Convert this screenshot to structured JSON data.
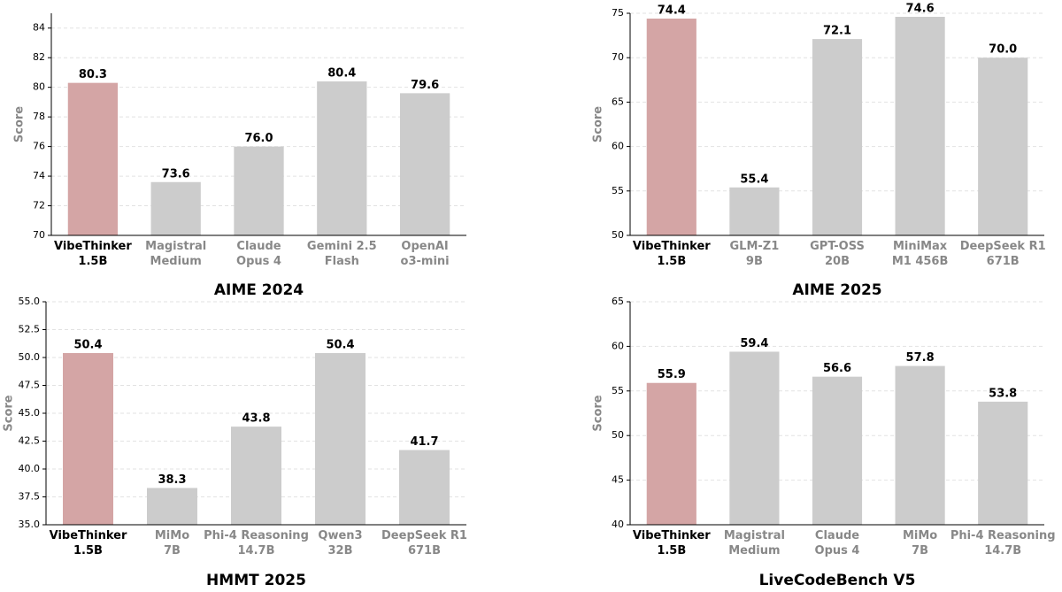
{
  "chart_data": [
    {
      "type": "bar",
      "title": "AIME 2024",
      "ylabel": "Score",
      "categories": [
        "VibeThinker\n1.5B",
        "Magistral\nMedium",
        "Claude\nOpus 4",
        "Gemini 2.5\nFlash",
        "OpenAI\no3-mini"
      ],
      "values": [
        80.3,
        73.6,
        76,
        80.4,
        79.6
      ],
      "value_labels": [
        "80.3",
        "73.6",
        "76.0",
        "80.4",
        "79.6"
      ],
      "colors": [
        "#d4a5a5",
        "#cccccc",
        "#cccccc",
        "#cccccc",
        "#cccccc"
      ],
      "tick_label_colors": [
        "#000000",
        "#888888",
        "#888888",
        "#888888",
        "#888888"
      ],
      "ylim": [
        70,
        85
      ],
      "yticks": [
        70,
        72,
        74,
        76,
        78,
        80,
        82,
        84
      ],
      "grid": true
    },
    {
      "type": "bar",
      "title": "AIME 2025",
      "ylabel": "Score",
      "categories": [
        "VibeThinker\n1.5B",
        "GLM-Z1\n9B",
        "GPT-OSS\n20B",
        "MiniMax\nM1 456B",
        "DeepSeek R1\n671B"
      ],
      "values": [
        74.4,
        55.4,
        72.1,
        74.6,
        70
      ],
      "value_labels": [
        "74.4",
        "55.4",
        "72.1",
        "74.6",
        "70.0"
      ],
      "colors": [
        "#d4a5a5",
        "#cccccc",
        "#cccccc",
        "#cccccc",
        "#cccccc"
      ],
      "tick_label_colors": [
        "#000000",
        "#888888",
        "#888888",
        "#888888",
        "#888888"
      ],
      "ylim": [
        50,
        75
      ],
      "yticks": [
        50,
        55,
        60,
        65,
        70,
        75
      ],
      "grid": true
    },
    {
      "type": "bar",
      "title": "HMMT 2025",
      "ylabel": "Score",
      "categories": [
        "VibeThinker\n1.5B",
        "MiMo\n7B",
        "Phi-4 Reasoning\n14.7B",
        "Qwen3\n32B",
        "DeepSeek R1\n671B"
      ],
      "values": [
        50.4,
        38.3,
        43.8,
        50.4,
        41.7
      ],
      "value_labels": [
        "50.4",
        "38.3",
        "43.8",
        "50.4",
        "41.7"
      ],
      "colors": [
        "#d4a5a5",
        "#cccccc",
        "#cccccc",
        "#cccccc",
        "#cccccc"
      ],
      "tick_label_colors": [
        "#000000",
        "#888888",
        "#888888",
        "#888888",
        "#888888"
      ],
      "ylim": [
        35,
        55
      ],
      "yticks": [
        {
          "value": 35,
          "label": "35.0"
        },
        {
          "value": 37.5,
          "label": "37.5"
        },
        {
          "value": 40,
          "label": "40.0"
        },
        {
          "value": 42.5,
          "label": "42.5"
        },
        {
          "value": 45,
          "label": "45.0"
        },
        {
          "value": 47.5,
          "label": "47.5"
        },
        {
          "value": 50,
          "label": "50.0"
        },
        {
          "value": 52.5,
          "label": "52.5"
        },
        {
          "value": 55,
          "label": "55.0"
        }
      ],
      "grid": true
    },
    {
      "type": "bar",
      "title": "LiveCodeBench V5",
      "ylabel": "Score",
      "categories": [
        "VibeThinker\n1.5B",
        "Magistral\nMedium",
        "Claude\nOpus 4",
        "MiMo\n7B",
        "Phi-4 Reasoning\n14.7B"
      ],
      "values": [
        55.9,
        59.4,
        56.6,
        57.8,
        53.8
      ],
      "value_labels": [
        "55.9",
        "59.4",
        "56.6",
        "57.8",
        "53.8"
      ],
      "colors": [
        "#d4a5a5",
        "#cccccc",
        "#cccccc",
        "#cccccc",
        "#cccccc"
      ],
      "tick_label_colors": [
        "#000000",
        "#888888",
        "#888888",
        "#888888",
        "#888888"
      ],
      "ylim": [
        40,
        65
      ],
      "yticks": [
        40,
        45,
        50,
        55,
        60,
        65
      ],
      "grid": true
    }
  ]
}
